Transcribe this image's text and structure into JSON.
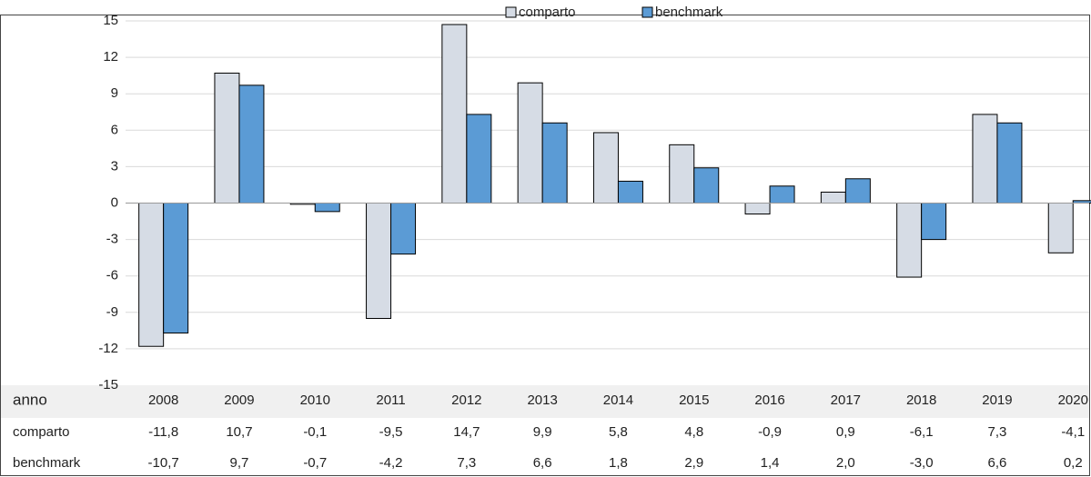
{
  "chart_data": {
    "type": "bar",
    "xlabel": "anno",
    "categories": [
      "2008",
      "2009",
      "2010",
      "2011",
      "2012",
      "2013",
      "2014",
      "2015",
      "2016",
      "2017",
      "2018",
      "2019",
      "2020"
    ],
    "series": [
      {
        "name": "comparto",
        "color": "#d6dce5",
        "values": [
          -11.8,
          10.7,
          -0.1,
          -9.5,
          14.7,
          9.9,
          5.8,
          4.8,
          -0.9,
          0.9,
          -6.1,
          7.3,
          -4.1
        ],
        "value_labels": [
          "-11,8",
          "10,7",
          "-0,1",
          "-9,5",
          "14,7",
          "9,9",
          "5,8",
          "4,8",
          "-0,9",
          "0,9",
          "-6,1",
          "7,3",
          "-4,1"
        ]
      },
      {
        "name": "benchmark",
        "color": "#5b9bd5",
        "values": [
          -10.7,
          9.7,
          -0.7,
          -4.2,
          7.3,
          6.6,
          1.8,
          2.9,
          1.4,
          2.0,
          -3.0,
          6.6,
          0.2
        ],
        "value_labels": [
          "-10,7",
          "9,7",
          "-0,7",
          "-4,2",
          "7,3",
          "6,6",
          "1,8",
          "2,9",
          "1,4",
          "2,0",
          "-3,0",
          "6,6",
          "0,2"
        ]
      }
    ],
    "ylim": [
      -15,
      15
    ],
    "yticks": [
      -15,
      -12,
      -9,
      -6,
      -3,
      0,
      3,
      6,
      9,
      12,
      15
    ],
    "grid": true,
    "legend": "top"
  }
}
